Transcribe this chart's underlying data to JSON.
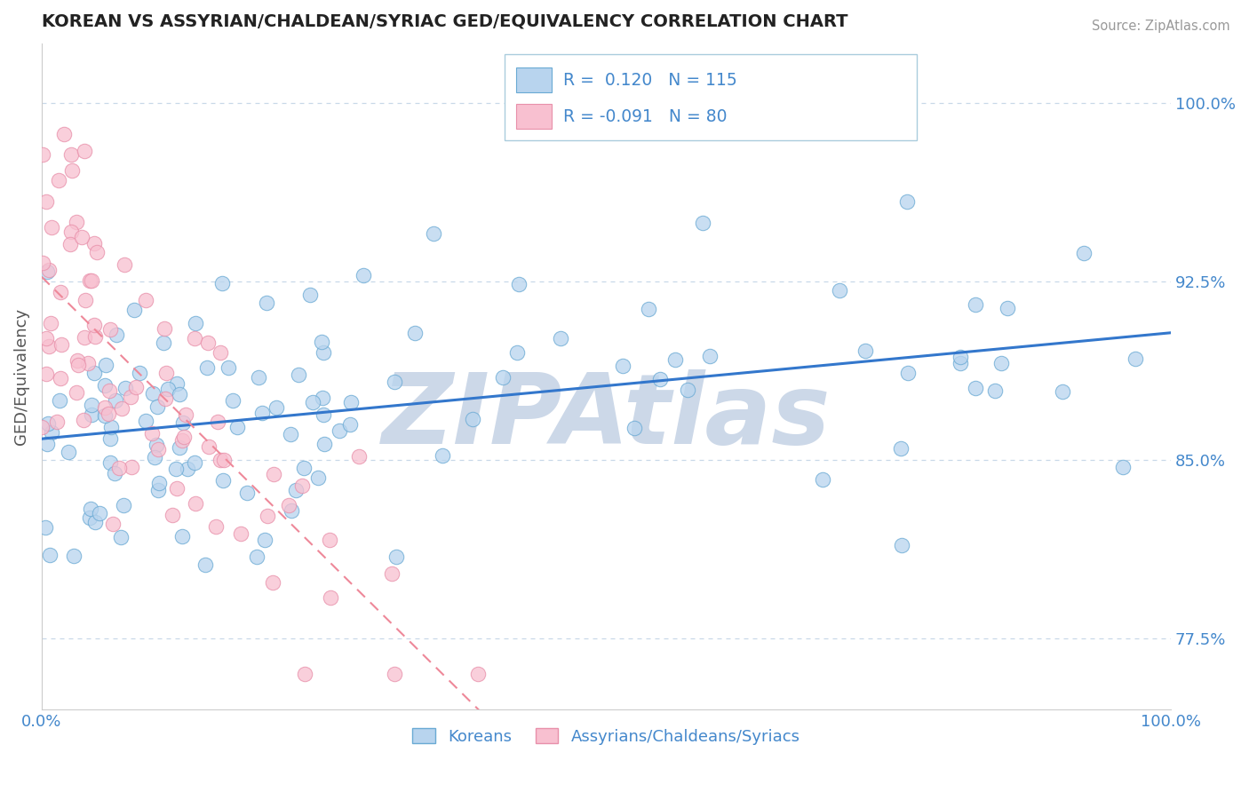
{
  "title": "KOREAN VS ASSYRIAN/CHALDEAN/SYRIAC GED/EQUIVALENCY CORRELATION CHART",
  "source_text": "Source: ZipAtlas.com",
  "ylabel": "GED/Equivalency",
  "xlim": [
    0.0,
    1.0
  ],
  "ylim": [
    0.745,
    1.025
  ],
  "yticks": [
    0.775,
    0.85,
    0.925,
    1.0
  ],
  "ytick_labels": [
    "77.5%",
    "85.0%",
    "92.5%",
    "100.0%"
  ],
  "R_korean": 0.12,
  "N_korean": 115,
  "R_assyrian": -0.091,
  "N_assyrian": 80,
  "korean_color": "#b8d4ee",
  "korean_edge_color": "#6aaad4",
  "assyrian_color": "#f8c0d0",
  "assyrian_edge_color": "#e890aa",
  "korean_line_color": "#3377cc",
  "assyrian_line_color": "#ee8899",
  "background_color": "#ffffff",
  "grid_color": "#c8d8e8",
  "tick_color": "#4488cc",
  "title_color": "#222222",
  "watermark_text": "ZIPAtlas",
  "watermark_color": "#ccd8e8"
}
